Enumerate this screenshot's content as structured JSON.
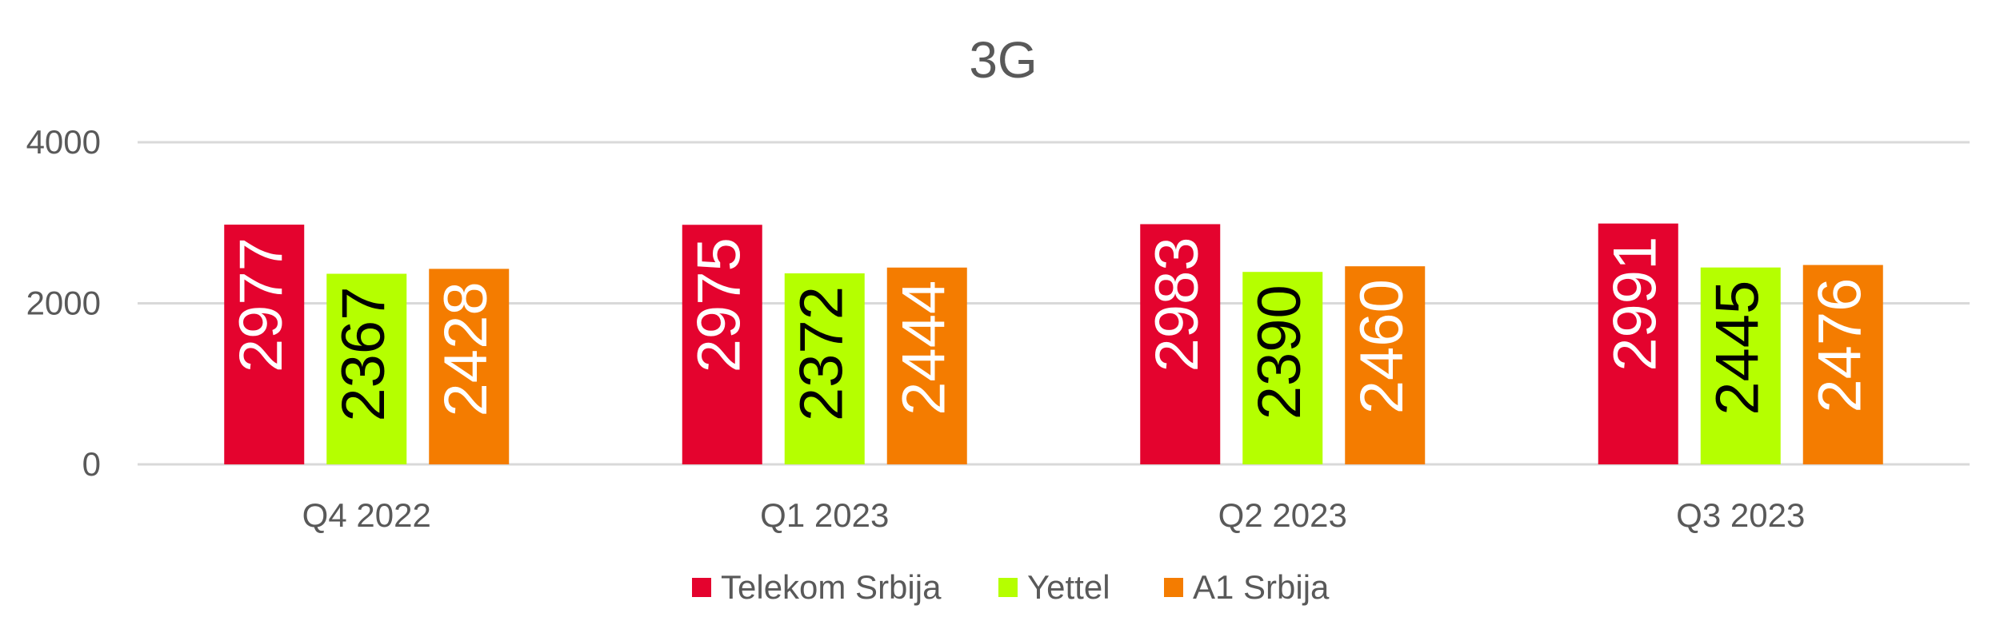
{
  "chart_data": {
    "type": "bar",
    "title": "3G",
    "xlabel": "",
    "ylabel": "",
    "categories": [
      "Q4 2022",
      "Q1 2023",
      "Q2 2023",
      "Q3 2023"
    ],
    "ylim": [
      0,
      4000
    ],
    "yticks": [
      0,
      2000,
      4000
    ],
    "ytick_labels": [
      "0",
      "2000",
      "4000"
    ],
    "grid": true,
    "legend_position": "bottom",
    "series": [
      {
        "name": "Telekom Srbija",
        "values": [
          2977,
          2975,
          2983,
          2991
        ],
        "color": "#E4032E",
        "label_color": "#ffffff"
      },
      {
        "name": "Yettel",
        "values": [
          2367,
          2372,
          2390,
          2445
        ],
        "color": "#B5FF00",
        "label_color": "#000000"
      },
      {
        "name": "A1 Srbija",
        "values": [
          2428,
          2444,
          2460,
          2476
        ],
        "color": "#F47C00",
        "label_color": "#ffffff"
      }
    ],
    "data_labels": [
      "2977",
      "2975",
      "2983",
      "2991",
      "2367",
      "2372",
      "2390",
      "2445",
      "2428",
      "2444",
      "2460",
      "2476"
    ]
  }
}
